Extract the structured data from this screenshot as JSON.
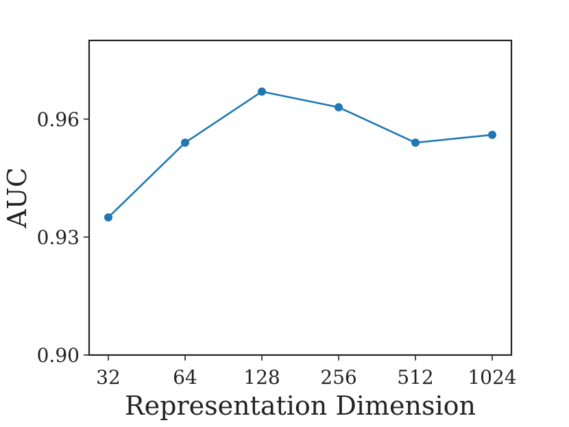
{
  "colors": {
    "series": "#1f77b4",
    "axes": "#222222",
    "background": "#ffffff"
  },
  "chart_data": {
    "type": "line",
    "title": "",
    "xlabel": "Representation Dimension",
    "ylabel": "AUC",
    "categories": [
      "32",
      "64",
      "128",
      "256",
      "512",
      "1024"
    ],
    "series": [
      {
        "values": [
          0.935,
          0.954,
          0.967,
          0.963,
          0.954,
          0.956
        ],
        "marker": "circle"
      }
    ],
    "ylim": [
      0.9,
      0.98
    ],
    "yticks": [
      0.9,
      0.93,
      0.96
    ],
    "ytick_labels": [
      "0.90",
      "0.93",
      "0.96"
    ],
    "grid": false,
    "legend": "none"
  }
}
